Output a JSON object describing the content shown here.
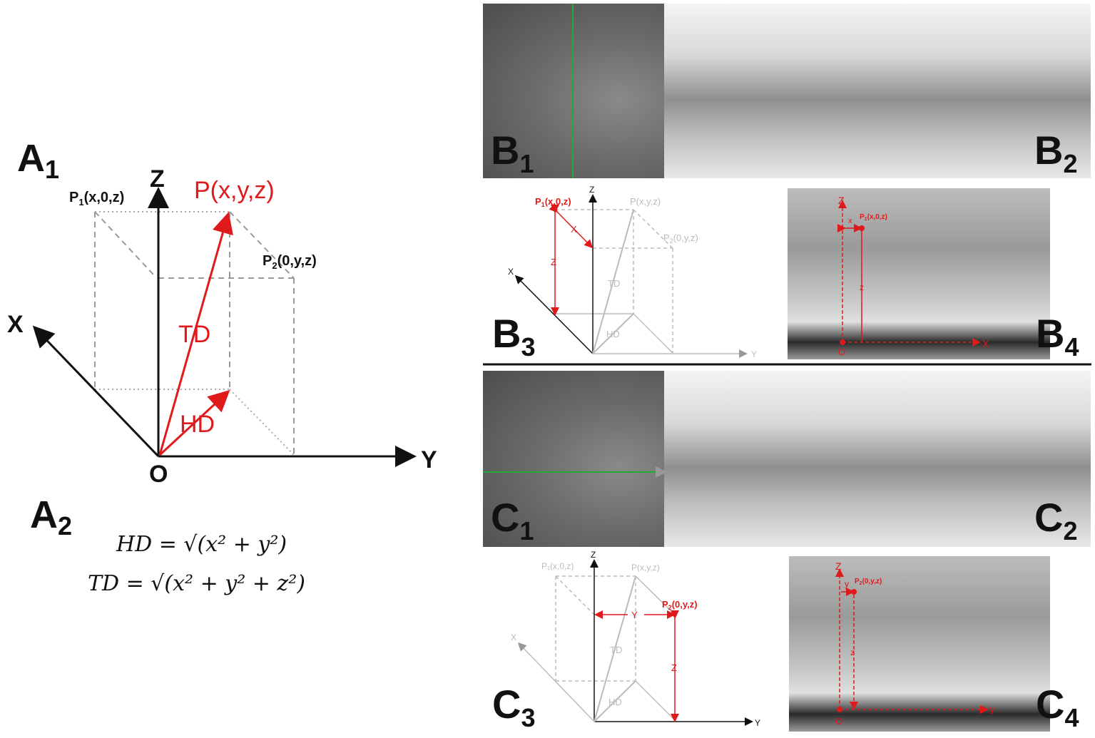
{
  "panel_a": {
    "label_a1": "A",
    "label_a1_sub": "1",
    "label_a2": "A",
    "label_a2_sub": "2",
    "axis_z": "Z",
    "axis_x": "X",
    "axis_y": "Y",
    "origin": "O",
    "point_p": "P(x,y,z)",
    "point_p1_pre": "P",
    "point_p1_sub": "1",
    "point_p1_post": "(x,0,z)",
    "point_p2_pre": "P",
    "point_p2_sub": "2",
    "point_p2_post": "(0,y,z)",
    "td": "TD",
    "hd": "HD",
    "formula_hd": "HD = √(x² + y²)",
    "formula_td": "TD = √(x² + y² + z²)"
  },
  "panel_b": {
    "b1": "B",
    "b1_sub": "1",
    "b2": "B",
    "b2_sub": "2",
    "b3": "B",
    "b3_sub": "3",
    "b4": "B",
    "b4_sub": "4",
    "b3_p1_pre": "P",
    "b3_p1_sub": "1",
    "b3_p1_post": "(x,0,z)",
    "b3_p": "P(x,y,z)",
    "b3_p2_pre": "P",
    "b3_p2_sub": "2",
    "b3_p2_post": "(0,y,z)",
    "b3_z": "Z",
    "b3_x_axis": "X",
    "b3_y_axis": "Y",
    "b3_x": "X",
    "b3_zlabel": "Z",
    "b3_td": "TD",
    "b3_hd": "HD",
    "b4_z": "Z",
    "b4_x": "x",
    "b4_p1_pre": "P",
    "b4_p1_sub": "1",
    "b4_p1_post": "(x,0,z)",
    "b4_zval": "z",
    "b4_o": "O",
    "b4_xaxis": "X"
  },
  "panel_c": {
    "c1": "C",
    "c1_sub": "1",
    "c2": "C",
    "c2_sub": "2",
    "c3": "C",
    "c3_sub": "3",
    "c4": "C",
    "c4_sub": "4",
    "c3_p1": "P₁(x,0,z)",
    "c3_p": "P(x,y,z)",
    "c3_p2_pre": "P",
    "c3_p2_sub": "2",
    "c3_p2_post": "(0,y,z)",
    "c3_z": "Z",
    "c3_x_axis": "X",
    "c3_y_axis": "Y",
    "c3_y": "Y",
    "c3_zlabel": "Z",
    "c3_td": "TD",
    "c3_hd": "HD",
    "c4_z": "Z",
    "c4_y": "y",
    "c4_p2_pre": "P",
    "c4_p2_sub": "2",
    "c4_p2_post": "(0,y,z)",
    "c4_zval": "z",
    "c4_o": "O",
    "c4_yaxis": "Y"
  },
  "colors": {
    "red": "#e0191b",
    "axis": "#111111",
    "dashed": "#999999",
    "green": "#22aa33"
  }
}
